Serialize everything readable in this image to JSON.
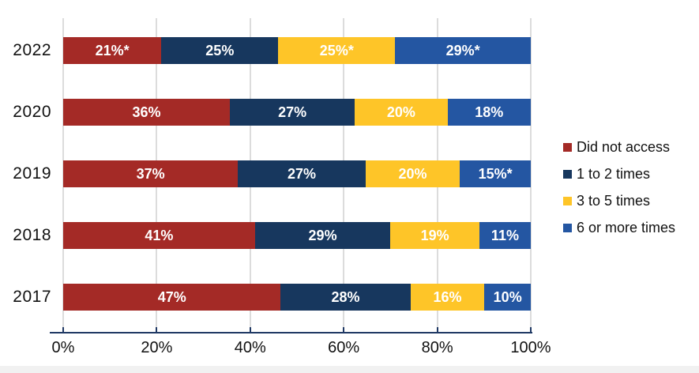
{
  "chart_data": {
    "type": "bar",
    "orientation": "horizontal",
    "stacked": true,
    "title": "",
    "categories": [
      "2022",
      "2020",
      "2019",
      "2018",
      "2017"
    ],
    "series": [
      {
        "name": "Did not access",
        "color": "#A42A26",
        "values": [
          21,
          36,
          37,
          41,
          47
        ],
        "labels": [
          "21%*",
          "36%",
          "37%",
          "41%",
          "47%"
        ]
      },
      {
        "name": "1 to 2 times",
        "color": "#17375E",
        "values": [
          25,
          27,
          27,
          29,
          28
        ],
        "labels": [
          "25%",
          "27%",
          "27%",
          "29%",
          "28%"
        ]
      },
      {
        "name": "3 to 5 times",
        "color": "#FEC528",
        "values": [
          25,
          20,
          20,
          19,
          16
        ],
        "labels": [
          "25%*",
          "20%",
          "20%",
          "19%",
          "16%"
        ]
      },
      {
        "name": "6 or more times",
        "color": "#2456A2",
        "values": [
          29,
          18,
          15,
          11,
          10
        ],
        "labels": [
          "29%*",
          "18%",
          "15%*",
          "11%",
          "10%"
        ]
      }
    ],
    "x_axis": {
      "range": [
        0,
        100
      ],
      "tick_labels": [
        "0%",
        "20%",
        "40%",
        "60%",
        "80%",
        "100%"
      ]
    },
    "legend": {
      "position": "right",
      "entries": [
        "Did not access",
        "1 to 2 times",
        "3 to 5 times",
        "6 or more times"
      ]
    },
    "grid": true,
    "colors": {
      "bar_label_text": "#FFFFFF",
      "gridline": "#DCDCDC",
      "axis_line": "#1F3864",
      "category_text": "#111111",
      "tick_text": "#111111"
    }
  }
}
